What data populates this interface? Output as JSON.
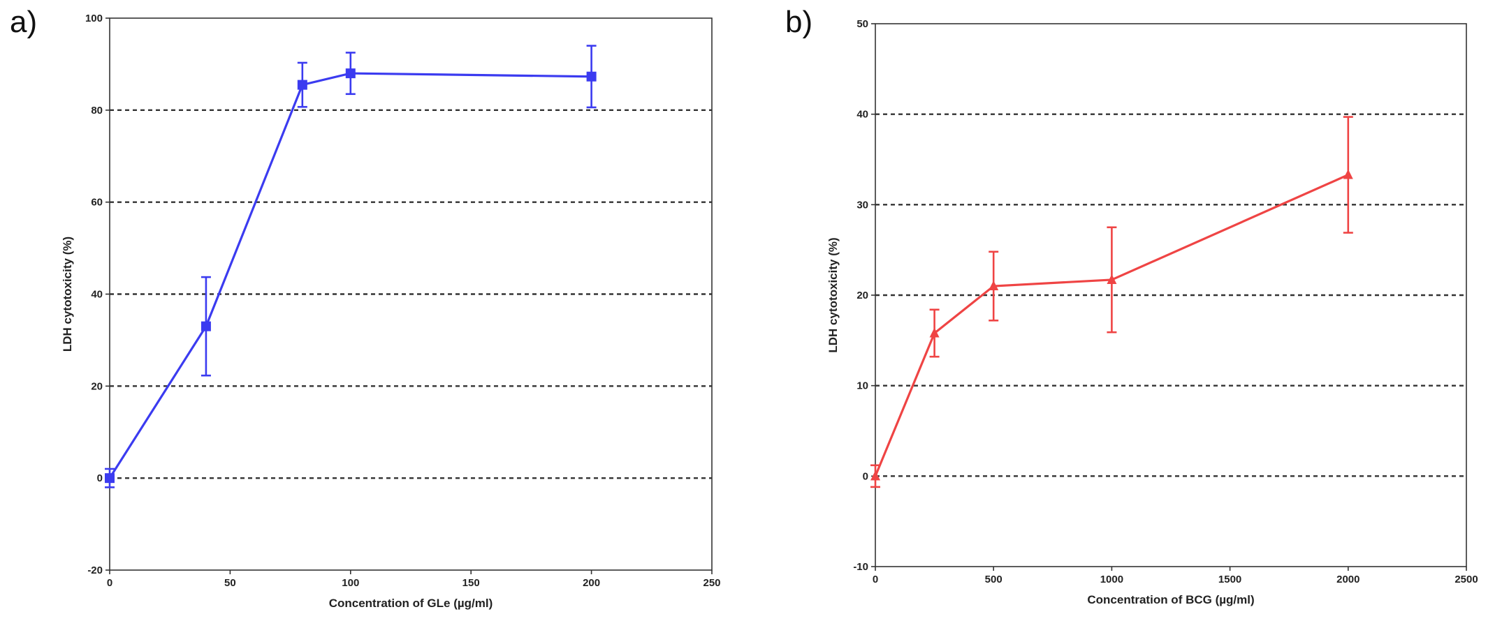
{
  "chart_data": [
    {
      "panel": "a)",
      "type": "line",
      "xlabel": "Concentration of GLe (µg/ml)",
      "ylabel": "LDH cytotoxicity (%)",
      "xlim": [
        0,
        250
      ],
      "ylim": [
        -20,
        100
      ],
      "xticks": [
        0,
        50,
        100,
        150,
        200,
        250
      ],
      "yticks": [
        -20,
        0,
        20,
        40,
        60,
        80,
        100
      ],
      "gridlines_dashed_y": [
        0,
        20,
        40,
        60,
        80
      ],
      "marker": "square",
      "color": "#3b3bf0",
      "series": [
        {
          "x": [
            0,
            40,
            80,
            100,
            200
          ],
          "y": [
            0,
            33,
            85.5,
            88,
            87.3
          ],
          "err": [
            2,
            10.7,
            4.8,
            4.5,
            6.7
          ]
        }
      ]
    },
    {
      "panel": "b)",
      "type": "line",
      "xlabel": "Concentration of BCG (µg/ml)",
      "ylabel": "LDH cytotoxicity (%)",
      "xlim": [
        0,
        2500
      ],
      "ylim": [
        -10,
        50
      ],
      "xticks": [
        0,
        500,
        1000,
        1500,
        2000,
        2500
      ],
      "yticks": [
        -10,
        0,
        10,
        20,
        30,
        40,
        50
      ],
      "gridlines_dashed_y": [
        0,
        10,
        20,
        30,
        40
      ],
      "marker": "triangle",
      "color": "#ef4444",
      "series": [
        {
          "x": [
            0,
            250,
            500,
            1000,
            2000
          ],
          "y": [
            0,
            15.8,
            21,
            21.7,
            33.3
          ],
          "err": [
            1.2,
            2.6,
            3.8,
            5.8,
            6.4
          ]
        }
      ]
    }
  ]
}
